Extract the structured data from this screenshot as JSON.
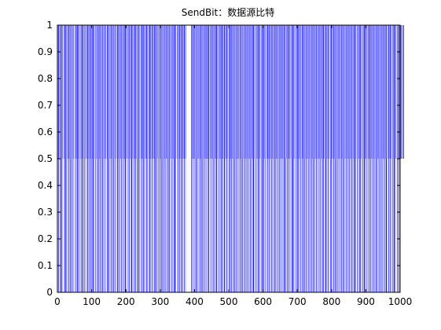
{
  "window": {
    "bg": "#ffffff"
  },
  "chart_data": {
    "type": "bar",
    "title": "SendBit：数据源比特",
    "xlabel": "",
    "ylabel": "",
    "xlim": [
      0,
      1000
    ],
    "ylim": [
      0,
      1
    ],
    "xticks": [
      0,
      100,
      200,
      300,
      400,
      500,
      600,
      700,
      800,
      900,
      1000
    ],
    "xtick_labels": [
      "0",
      "100",
      "200",
      "300",
      "400",
      "500",
      "600",
      "700",
      "800",
      "900",
      "1000"
    ],
    "yticks": [
      0,
      0.1,
      0.2,
      0.3,
      0.4,
      0.5,
      0.6,
      0.7,
      0.8,
      0.9,
      1
    ],
    "ytick_labels": [
      "0",
      "0.1",
      "0.2",
      "0.3",
      "0.4",
      "0.5",
      "0.6",
      "0.7",
      "0.8",
      "0.9",
      "1"
    ],
    "grid": false,
    "bar_color": "#0000ff",
    "bar_gap_color": "#ffffff",
    "series": [
      {
        "values": [
          1,
          0,
          1,
          1,
          0,
          1,
          0,
          0,
          1,
          1,
          1,
          0,
          1,
          1,
          0,
          1,
          0,
          0,
          1,
          0,
          1,
          1,
          0,
          1,
          1,
          1,
          0,
          0,
          1,
          0,
          1,
          0,
          1,
          1,
          0,
          1,
          0,
          1,
          1,
          1,
          0,
          0,
          1,
          0,
          1,
          1,
          0,
          1,
          0,
          0,
          0,
          1,
          1,
          0,
          1,
          0,
          1,
          1,
          1,
          0,
          1,
          0,
          1,
          1,
          0,
          0,
          1,
          0,
          0,
          1,
          1,
          0,
          1,
          1,
          1,
          0,
          0,
          1,
          1,
          0,
          1,
          0,
          1,
          0,
          0,
          1,
          0,
          1,
          1,
          1,
          0,
          1,
          0,
          0,
          1,
          1,
          0,
          1,
          0,
          1,
          1,
          0,
          1,
          1,
          1,
          0,
          1,
          0,
          0,
          1,
          1,
          0,
          1,
          0,
          1,
          0,
          0,
          1,
          1,
          1,
          0,
          1,
          0,
          1,
          1,
          0,
          0,
          1,
          0,
          1,
          1,
          1,
          0,
          0,
          1,
          0,
          1,
          1,
          0,
          1,
          0,
          1,
          0,
          0,
          1,
          1,
          0,
          1,
          1,
          1,
          0,
          1,
          0,
          0,
          1,
          0,
          1,
          1,
          0,
          1,
          0,
          1,
          1,
          1,
          0,
          0,
          1,
          0,
          1,
          1,
          0,
          1,
          0,
          0,
          1,
          1,
          1,
          0,
          1,
          1,
          0,
          1,
          0,
          1,
          0,
          1,
          1,
          0,
          1,
          0,
          0,
          1,
          1,
          0,
          1,
          0,
          1,
          1,
          1,
          0,
          1,
          0,
          1,
          0,
          0,
          1,
          1,
          0,
          1,
          1,
          0,
          1,
          0,
          1,
          0,
          1,
          1,
          1,
          0,
          1,
          0,
          0,
          1,
          1,
          0,
          1,
          0,
          1,
          1,
          0,
          1,
          0,
          0,
          1,
          1,
          1,
          0,
          1,
          0,
          1,
          1,
          0,
          0,
          1,
          0,
          1,
          1,
          0,
          1,
          0,
          1,
          1,
          1,
          0,
          0,
          1,
          0,
          1,
          0,
          1,
          1,
          0,
          1,
          1,
          0,
          0,
          1,
          0,
          1,
          1,
          1,
          0,
          1,
          0,
          0,
          1,
          1,
          0,
          1,
          0,
          1,
          0,
          1,
          1,
          0,
          1,
          1,
          1,
          0,
          0,
          1,
          0,
          1,
          0,
          1,
          1,
          0,
          0,
          1,
          1,
          0,
          1,
          0,
          1,
          1,
          1,
          0,
          1,
          0,
          0,
          1,
          1,
          0,
          1,
          1,
          0,
          1,
          0,
          1,
          0,
          1,
          1,
          0,
          0,
          1,
          1,
          1,
          0,
          1,
          0,
          1,
          0,
          0,
          1,
          1,
          0,
          1,
          0,
          1,
          1,
          0,
          1,
          1,
          1,
          0,
          1,
          0,
          0,
          1,
          0,
          1,
          1,
          0,
          1,
          0,
          1,
          1,
          0,
          1,
          0,
          0,
          1,
          1,
          1,
          0,
          1,
          0,
          1,
          0,
          1,
          1,
          0,
          1,
          0,
          0,
          1,
          0,
          0,
          0,
          0,
          0,
          0,
          0,
          0,
          0,
          0,
          0,
          0,
          0,
          0,
          1,
          1,
          0,
          1,
          1,
          0,
          1,
          0,
          1,
          0,
          1,
          1,
          0,
          0,
          1,
          1,
          1,
          0,
          1,
          0,
          1,
          0,
          1,
          0,
          0,
          1,
          1,
          0,
          1,
          0,
          1,
          1,
          1,
          0,
          1,
          0,
          0,
          1,
          1,
          0,
          1,
          0,
          1,
          1,
          0,
          1,
          0,
          1,
          0,
          1,
          1,
          1,
          0,
          0,
          1,
          0,
          1,
          0,
          1,
          1,
          0,
          1,
          0,
          1,
          1,
          0,
          0,
          1,
          1,
          0,
          1,
          0,
          1,
          1,
          1,
          0,
          1,
          0,
          0,
          1,
          1,
          0,
          1,
          0,
          1,
          0,
          1,
          1,
          0,
          1,
          1,
          0,
          1,
          0,
          0,
          1,
          1,
          1,
          0,
          1,
          0,
          1,
          0,
          1,
          1,
          0,
          1,
          0,
          0,
          1,
          1,
          0,
          1,
          1,
          0,
          1,
          0,
          1,
          1,
          0,
          1,
          0,
          1,
          0,
          1,
          1,
          1,
          0,
          0,
          1,
          0,
          1,
          1,
          0,
          1,
          0,
          1,
          1,
          0,
          1,
          0,
          0,
          1,
          1,
          0,
          1,
          0,
          1,
          1,
          1,
          0,
          1,
          0,
          1,
          0,
          0,
          1,
          1,
          0,
          1,
          0,
          1,
          1,
          0,
          1,
          1,
          0,
          1,
          0,
          1,
          0,
          1,
          1,
          0,
          0,
          1,
          1,
          0,
          1,
          0,
          1,
          1,
          1,
          0,
          1,
          0,
          0,
          1,
          1,
          0,
          1,
          0,
          1,
          0,
          1,
          1,
          0,
          1,
          1,
          0,
          1,
          0,
          0,
          1,
          1,
          0,
          1,
          0,
          1,
          1,
          1,
          0,
          1,
          0,
          1,
          0,
          1,
          1,
          0,
          0,
          1,
          0,
          1,
          1,
          0,
          1,
          0,
          1,
          1,
          0,
          1,
          0,
          1,
          0,
          1,
          1,
          0,
          1,
          1,
          0,
          1,
          0,
          0,
          1,
          1,
          1,
          0,
          1,
          0,
          1,
          0,
          1,
          1,
          0,
          1,
          0,
          0,
          1,
          1,
          0,
          1,
          1,
          0,
          1,
          0,
          1,
          0,
          1,
          1,
          0,
          1,
          0,
          1,
          1,
          1,
          0,
          0,
          1,
          0,
          1,
          1,
          0,
          1,
          0,
          1,
          1,
          0,
          1,
          0,
          0,
          1,
          1,
          0,
          1,
          0,
          1,
          1,
          1,
          0,
          1,
          0,
          1,
          0,
          0,
          1,
          1,
          0,
          1,
          0,
          1,
          1,
          0,
          1,
          1,
          0,
          1,
          0,
          1,
          0,
          1,
          1,
          0,
          0,
          1,
          1,
          0,
          1,
          0,
          1,
          1,
          1,
          0,
          1,
          0,
          0,
          1,
          1,
          0,
          1,
          0,
          1,
          0,
          1,
          1,
          0,
          1,
          1,
          0,
          1,
          0,
          0,
          1,
          1,
          0,
          1,
          0,
          1,
          1,
          1,
          0,
          1,
          0,
          1,
          0,
          1,
          1,
          0,
          0,
          1,
          0,
          1,
          1,
          0,
          1,
          0,
          1,
          1,
          0,
          1,
          0,
          1,
          0,
          1,
          1,
          0,
          1,
          1,
          0,
          1,
          0,
          0,
          1,
          1,
          1,
          0,
          1,
          0,
          1,
          0,
          1,
          1,
          0,
          1,
          0,
          0,
          1,
          1,
          0,
          1,
          1,
          0,
          1,
          0,
          1,
          0,
          1,
          1,
          0,
          1,
          0,
          1,
          1,
          1,
          0,
          0,
          1,
          0,
          1,
          1,
          0,
          1,
          0,
          1,
          1,
          0,
          1,
          0,
          0,
          1,
          1,
          0,
          1,
          0,
          1,
          1,
          1,
          0,
          1,
          0,
          1,
          0,
          0,
          1,
          1,
          0,
          1,
          0,
          1,
          1,
          0,
          1,
          1,
          0,
          1,
          0,
          1,
          0,
          1,
          1,
          0,
          0,
          1,
          1,
          0,
          1,
          0,
          1,
          1,
          1,
          0,
          1,
          0,
          0,
          1,
          1,
          0,
          1,
          0,
          1,
          0,
          1,
          1,
          0,
          1,
          1,
          0,
          1,
          0,
          0,
          1,
          1,
          0,
          1,
          0,
          1,
          1,
          1,
          0,
          1,
          0,
          1,
          0,
          1,
          1,
          0,
          0,
          1,
          0,
          1,
          1,
          0,
          1,
          0,
          1,
          1,
          0,
          1,
          0,
          1,
          0,
          1,
          1,
          0,
          1,
          1,
          0,
          1,
          0,
          0,
          1,
          1,
          1,
          0,
          1,
          0,
          1,
          0,
          1,
          1,
          0,
          1,
          0,
          0,
          1,
          1,
          0,
          1,
          1,
          0,
          1,
          0,
          1,
          0,
          1,
          1,
          0,
          1,
          0,
          1,
          1,
          1,
          0,
          0,
          1,
          0,
          1,
          1,
          0,
          1,
          0,
          1,
          1,
          0,
          1,
          0,
          0,
          1,
          1,
          0,
          1,
          0,
          1,
          1,
          1,
          0,
          1,
          0,
          1,
          0,
          0,
          1,
          1,
          0,
          1,
          0,
          1,
          1,
          0,
          1,
          1,
          0,
          1,
          0,
          1,
          0,
          1,
          1,
          0,
          0,
          1,
          1
        ]
      }
    ]
  }
}
